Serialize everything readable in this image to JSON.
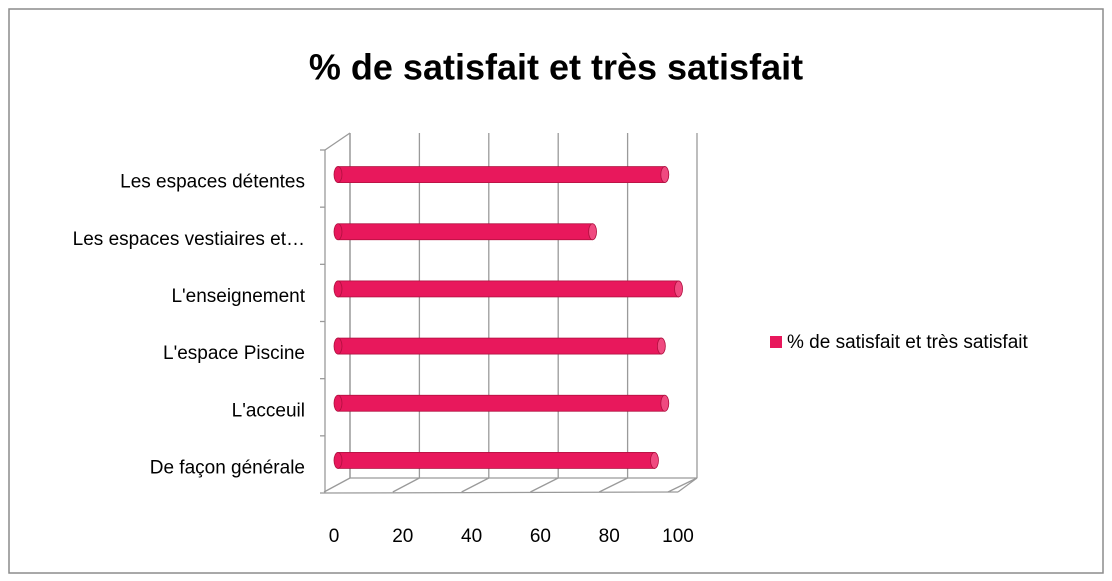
{
  "chart_data": {
    "type": "bar3d_horizontal",
    "title": "% de satisfait et très satisfait",
    "categories": [
      "De façon générale",
      "L'acceuil",
      "L'espace Piscine",
      "L'enseignement",
      "Les espaces vestiaires et…",
      "Les espaces détentes"
    ],
    "series": [
      {
        "name": "% de satisfait et très satisfait",
        "color": "#e8185c",
        "values": [
          92,
          95,
          94,
          99,
          74,
          95
        ]
      }
    ],
    "xlim": [
      0,
      100
    ],
    "xticks": [
      0,
      20,
      40,
      60,
      80,
      100
    ],
    "grid": true,
    "legend": "right"
  }
}
